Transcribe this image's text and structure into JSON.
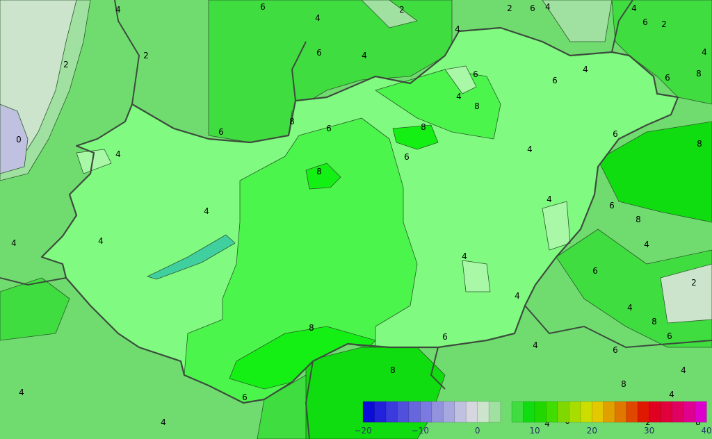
{
  "map": {
    "contour_labels": [
      "4",
      "6",
      "4",
      "2",
      "2",
      "6",
      "4",
      "4",
      "6",
      "2",
      "4",
      "8",
      "6",
      "4",
      "6",
      "4",
      "6",
      "6",
      "4",
      "2",
      "2",
      "0",
      "4",
      "6",
      "8",
      "6",
      "8",
      "4",
      "8",
      "4",
      "8",
      "6",
      "4",
      "6",
      "8",
      "6",
      "8",
      "4",
      "4",
      "4",
      "4",
      "6",
      "2",
      "4",
      "4",
      "4",
      "8",
      "6",
      "8",
      "6",
      "4",
      "6",
      "8",
      "8",
      "4",
      "6",
      "4",
      "4",
      "4",
      "4",
      "6",
      "2",
      "8"
    ],
    "colors": {
      "outside_2_4": "#a0e0a0",
      "outside_4_6": "#70dc70",
      "outside_6_8": "#40dd40",
      "outside_8_10": "#10dd10",
      "outside_0_2": "#cce4cc",
      "hungary_4_6": "#80fa80",
      "hungary_6_8": "#4cf54c",
      "hungary_8_10": "#14f014",
      "hungary_2_4": "#a8f8a8",
      "lake": "#40d0a0",
      "border": "#3c4c3c"
    }
  },
  "colorbar": {
    "min": -20,
    "max": 40,
    "step": 2,
    "tick_labels": [
      "−20",
      "−10",
      "0",
      "10",
      "20",
      "30",
      "40"
    ],
    "bin_colors": [
      "#0c0cd8",
      "#2222dd",
      "#3a3add",
      "#5050dd",
      "#6666dd",
      "#7a7ae0",
      "#9292dd",
      "#a8a8e0",
      "#c0c0e0",
      "#d6d6e0",
      "#cce4cc",
      "#a0e0a0",
      "",
      "#40dd40",
      "#10dd10",
      "#20d800",
      "#40dd00",
      "#80d800",
      "#a8dd00",
      "#ccdd00",
      "#e4c800",
      "#e0a000",
      "#e07800",
      "#e04800",
      "#e01800",
      "#e00020",
      "#e0003c",
      "#e00060",
      "#e00090",
      "#dd00cc"
    ]
  }
}
